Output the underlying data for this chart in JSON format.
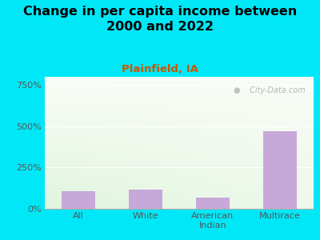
{
  "title": "Change in per capita income between\n2000 and 2022",
  "subtitle": "Plainfield, IA",
  "categories": [
    "All",
    "White",
    "American\nIndian",
    "Multirace"
  ],
  "values": [
    105,
    115,
    70,
    470
  ],
  "bar_color": "#c8a8d8",
  "title_fontsize": 11.5,
  "subtitle_fontsize": 9.5,
  "subtitle_color": "#cc5500",
  "background_outer": "#00e8f8",
  "yticks": [
    0,
    250,
    500,
    750
  ],
  "ytick_labels": [
    "0%",
    "250%",
    "500%",
    "750%"
  ],
  "ylim": [
    0,
    800
  ],
  "watermark": " City-Data.com"
}
